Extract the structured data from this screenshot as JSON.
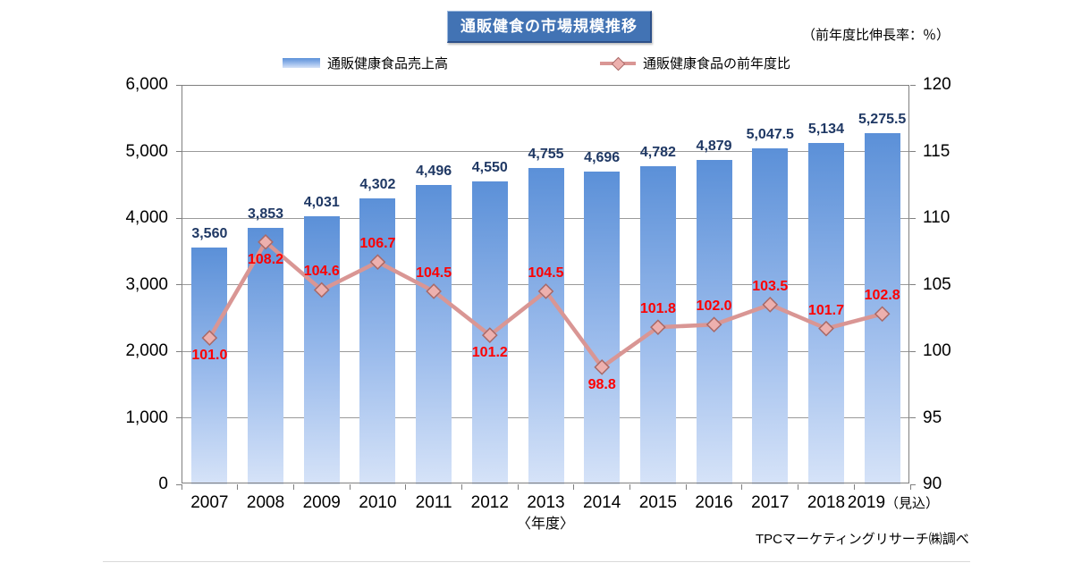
{
  "header": {
    "title": "通販健食の市場規模推移",
    "note": "（前年度比伸長率：％）"
  },
  "chart_data": {
    "type": "combo",
    "categories": [
      "2007",
      "2008",
      "2009",
      "2010",
      "2011",
      "2012",
      "2013",
      "2014",
      "2015",
      "2016",
      "2017",
      "2018",
      "2019"
    ],
    "last_category_suffix": "（見込）",
    "series": [
      {
        "name": "通販健康食品売上高",
        "type": "bar",
        "axis": "left",
        "values": [
          3560,
          3853,
          4031,
          4302,
          4496,
          4550,
          4755,
          4696,
          4782,
          4879,
          5047.5,
          5134,
          5275.5
        ],
        "labels": [
          "3,560",
          "3,853",
          "4,031",
          "4,302",
          "4,496",
          "4,550",
          "4,755",
          "4,696",
          "4,782",
          "4,879",
          "5,047.5",
          "5,134",
          "5,275.5"
        ]
      },
      {
        "name": "通販健康食品の前年度比",
        "type": "line",
        "axis": "right",
        "values": [
          101.0,
          108.2,
          104.6,
          106.7,
          104.5,
          101.2,
          104.5,
          98.8,
          101.8,
          102.0,
          103.5,
          101.7,
          102.8
        ],
        "labels": [
          "101.0",
          "108.2",
          "104.6",
          "106.7",
          "104.5",
          "101.2",
          "104.5",
          "98.8",
          "101.8",
          "102.0",
          "103.5",
          "101.7",
          "102.8"
        ],
        "label_position": [
          "below",
          "below",
          "above",
          "above",
          "above",
          "below",
          "above",
          "below",
          "above",
          "above",
          "above",
          "above",
          "above"
        ]
      }
    ],
    "left_axis": {
      "min": 0,
      "max": 6000,
      "step": 1000,
      "ticks": [
        "0",
        "1,000",
        "2,000",
        "3,000",
        "4,000",
        "5,000",
        "6,000"
      ]
    },
    "right_axis": {
      "min": 90,
      "max": 120,
      "step": 5,
      "ticks": [
        "90",
        "95",
        "100",
        "105",
        "110",
        "115",
        "120"
      ]
    },
    "grid": true,
    "legend_position": "top",
    "xlabel": "〈年度〉",
    "source": "TPCマーケティングリサーチ㈱調べ"
  },
  "colors": {
    "title_bg": "#4273b4",
    "bar_top": "#5b90d8",
    "bar_bottom": "#d6e3f8",
    "bar_label": "#1f3864",
    "line": "#d99694",
    "marker_fill": "#edb0ae",
    "marker_stroke": "#a86967",
    "value_label": "#fe0000",
    "grid": "#9a9a9a",
    "border": "#7f7f7f"
  }
}
